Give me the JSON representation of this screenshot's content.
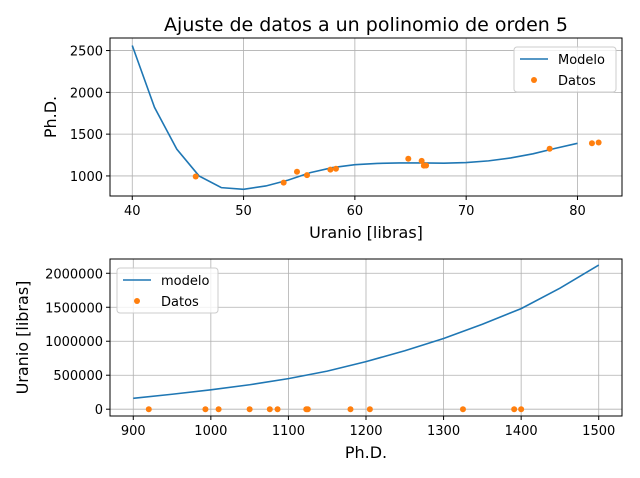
{
  "chart_data": [
    {
      "type": "line",
      "title": "Ajuste de datos a un polinomio de orden 5",
      "xlabel": "Uranio [libras]",
      "ylabel": "Ph.D.",
      "xlim": [
        38,
        84
      ],
      "ylim": [
        760,
        2650
      ],
      "xticks": [
        40,
        50,
        60,
        70,
        80
      ],
      "yticks": [
        1000,
        1500,
        2000,
        2500
      ],
      "grid": true,
      "legend_position": "top-right",
      "series": [
        {
          "name": "Modelo",
          "kind": "line",
          "color": "#1f77b4",
          "x": [
            40,
            42,
            44,
            46,
            48,
            50,
            52,
            54,
            56,
            58,
            60,
            62,
            64,
            66,
            68,
            70,
            72,
            74,
            76,
            78,
            80
          ],
          "y": [
            2560,
            1820,
            1320,
            1000,
            860,
            840,
            880,
            950,
            1040,
            1100,
            1135,
            1150,
            1155,
            1155,
            1152,
            1160,
            1180,
            1215,
            1265,
            1330,
            1390
          ]
        },
        {
          "name": "Datos",
          "kind": "scatter",
          "color": "#ff7f0e",
          "x": [
            45.7,
            53.6,
            54.8,
            55.7,
            57.8,
            58.3,
            64.8,
            66.0,
            66.2,
            66.4,
            77.5,
            81.3,
            81.9
          ],
          "y": [
            993,
            920,
            1050,
            1010,
            1076,
            1086,
            1205,
            1180,
            1123,
            1125,
            1325,
            1391,
            1400
          ]
        }
      ]
    },
    {
      "type": "line",
      "title": "",
      "xlabel": "Ph.D.",
      "ylabel": "Uranio [libras]",
      "xlim": [
        870,
        1530
      ],
      "ylim": [
        -100000,
        2210000
      ],
      "xticks": [
        900,
        1000,
        1100,
        1200,
        1300,
        1400,
        1500
      ],
      "yticks": [
        0,
        500000,
        1000000,
        1500000,
        2000000
      ],
      "grid": true,
      "legend_position": "top-left",
      "series": [
        {
          "name": "modelo",
          "kind": "line",
          "color": "#1f77b4",
          "x": [
            900,
            950,
            1000,
            1050,
            1100,
            1150,
            1200,
            1250,
            1300,
            1350,
            1400,
            1450,
            1500
          ],
          "y": [
            160000,
            220000,
            285000,
            360000,
            450000,
            560000,
            700000,
            860000,
            1040000,
            1250000,
            1480000,
            1780000,
            2120000
          ]
        },
        {
          "name": "Datos",
          "kind": "scatter",
          "color": "#ff7f0e",
          "x": [
            920,
            993,
            1010,
            1050,
            1076,
            1086,
            1123,
            1125,
            1180,
            1205,
            1325,
            1391,
            1400
          ],
          "y": [
            0,
            0,
            0,
            0,
            0,
            0,
            0,
            0,
            0,
            0,
            0,
            0,
            0
          ]
        }
      ]
    }
  ]
}
